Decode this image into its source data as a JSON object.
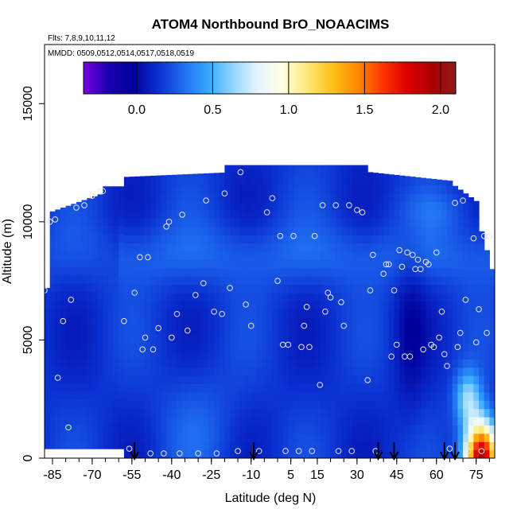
{
  "chart_data": {
    "type": "heatmap",
    "title": "ATOM4 Northbound BrO_NOAACIMS",
    "subtitle_flights": "Flts: 7,8,9,10,11,12",
    "subtitle_dates": "MMDD: 0509,0512,0514,0517,0518,0519",
    "xlabel": "Latitude (deg N)",
    "ylabel": "Altitude (m)",
    "xlim": [
      -88,
      82
    ],
    "ylim": [
      0,
      17500
    ],
    "x_ticks": [
      -85,
      -70,
      -55,
      -40,
      -25,
      -10,
      5,
      15,
      30,
      45,
      60,
      75
    ],
    "y_ticks": [
      0,
      5000,
      10000,
      15000
    ],
    "colorbar": {
      "range": [
        -0.35,
        2.1
      ],
      "ticks": [
        0.0,
        0.5,
        1.0,
        1.5,
        2.0
      ],
      "tick_labels": [
        "0.0",
        "0.5",
        "1.0",
        "1.5",
        "2.0"
      ],
      "colors": [
        "#7a00e0",
        "#1a00b0",
        "#00009a",
        "#0a2fd0",
        "#1e6cf0",
        "#35a8ff",
        "#8fd4ff",
        "#e6f6ff",
        "#ffffe6",
        "#ffe97a",
        "#ffc21a",
        "#ff8a00",
        "#ff3a00",
        "#e00000",
        "#b00000",
        "#8b1a1a"
      ]
    },
    "profile_arrows_lat": [
      -54,
      -9,
      38,
      44,
      63,
      67
    ],
    "observations": [
      {
        "lat": -88,
        "alt": 7100
      },
      {
        "lat": -86,
        "alt": 10000
      },
      {
        "lat": -84,
        "alt": 10100
      },
      {
        "lat": -83,
        "alt": 3400
      },
      {
        "lat": -81,
        "alt": 5800
      },
      {
        "lat": -79,
        "alt": 1300
      },
      {
        "lat": -78,
        "alt": 6700
      },
      {
        "lat": -76,
        "alt": 10600
      },
      {
        "lat": -73,
        "alt": 10700
      },
      {
        "lat": -70,
        "alt": 11100
      },
      {
        "lat": -67,
        "alt": 11300
      },
      {
        "lat": -66,
        "alt": 11300
      },
      {
        "lat": -58,
        "alt": 5800
      },
      {
        "lat": -56,
        "alt": 400
      },
      {
        "lat": -54,
        "alt": 7000
      },
      {
        "lat": -52,
        "alt": 8500
      },
      {
        "lat": -51,
        "alt": 4600
      },
      {
        "lat": -50,
        "alt": 5100
      },
      {
        "lat": -49,
        "alt": 8500
      },
      {
        "lat": -48,
        "alt": 200
      },
      {
        "lat": -47,
        "alt": 4600
      },
      {
        "lat": -45,
        "alt": 5500
      },
      {
        "lat": -43,
        "alt": 200
      },
      {
        "lat": -42,
        "alt": 9800
      },
      {
        "lat": -41,
        "alt": 10000
      },
      {
        "lat": -40,
        "alt": 5100
      },
      {
        "lat": -38,
        "alt": 6100
      },
      {
        "lat": -37,
        "alt": 200
      },
      {
        "lat": -36,
        "alt": 10300
      },
      {
        "lat": -34,
        "alt": 5400
      },
      {
        "lat": -31,
        "alt": 6900
      },
      {
        "lat": -30,
        "alt": 200
      },
      {
        "lat": -28,
        "alt": 7400
      },
      {
        "lat": -27,
        "alt": 10900
      },
      {
        "lat": -24,
        "alt": 6200
      },
      {
        "lat": -23,
        "alt": 200
      },
      {
        "lat": -21,
        "alt": 6100
      },
      {
        "lat": -20,
        "alt": 11200
      },
      {
        "lat": -18,
        "alt": 7200
      },
      {
        "lat": -15,
        "alt": 300
      },
      {
        "lat": -14,
        "alt": 12100
      },
      {
        "lat": -12,
        "alt": 6500
      },
      {
        "lat": -10,
        "alt": 5600
      },
      {
        "lat": -7,
        "alt": 300
      },
      {
        "lat": -4,
        "alt": 10400
      },
      {
        "lat": -2,
        "alt": 11000
      },
      {
        "lat": 0,
        "alt": 7500
      },
      {
        "lat": 1,
        "alt": 9400
      },
      {
        "lat": 2,
        "alt": 4800
      },
      {
        "lat": 3,
        "alt": 300
      },
      {
        "lat": 4,
        "alt": 4800
      },
      {
        "lat": 6,
        "alt": 9400
      },
      {
        "lat": 8,
        "alt": 300
      },
      {
        "lat": 9,
        "alt": 4700
      },
      {
        "lat": 10,
        "alt": 5600
      },
      {
        "lat": 11,
        "alt": 6400
      },
      {
        "lat": 12,
        "alt": 4700
      },
      {
        "lat": 13,
        "alt": 300
      },
      {
        "lat": 14,
        "alt": 9400
      },
      {
        "lat": 16,
        "alt": 3100
      },
      {
        "lat": 17,
        "alt": 10700
      },
      {
        "lat": 18,
        "alt": 6200
      },
      {
        "lat": 19,
        "alt": 7000
      },
      {
        "lat": 20,
        "alt": 6800
      },
      {
        "lat": 22,
        "alt": 10700
      },
      {
        "lat": 23,
        "alt": 300
      },
      {
        "lat": 24,
        "alt": 6600
      },
      {
        "lat": 25,
        "alt": 5600
      },
      {
        "lat": 27,
        "alt": 10700
      },
      {
        "lat": 28,
        "alt": 300
      },
      {
        "lat": 30,
        "alt": 10500
      },
      {
        "lat": 32,
        "alt": 10400
      },
      {
        "lat": 34,
        "alt": 3300
      },
      {
        "lat": 35,
        "alt": 7100
      },
      {
        "lat": 36,
        "alt": 8600
      },
      {
        "lat": 37,
        "alt": 300
      },
      {
        "lat": 40,
        "alt": 7800
      },
      {
        "lat": 41,
        "alt": 8200
      },
      {
        "lat": 42,
        "alt": 8200
      },
      {
        "lat": 43,
        "alt": 4300
      },
      {
        "lat": 44,
        "alt": 7100
      },
      {
        "lat": 45,
        "alt": 4800
      },
      {
        "lat": 46,
        "alt": 8800
      },
      {
        "lat": 47,
        "alt": 8100
      },
      {
        "lat": 48,
        "alt": 4300
      },
      {
        "lat": 49,
        "alt": 8700
      },
      {
        "lat": 50,
        "alt": 4300
      },
      {
        "lat": 51,
        "alt": 8600
      },
      {
        "lat": 52,
        "alt": 8000
      },
      {
        "lat": 53,
        "alt": 8400
      },
      {
        "lat": 54,
        "alt": 8000
      },
      {
        "lat": 55,
        "alt": 4600
      },
      {
        "lat": 56,
        "alt": 8300
      },
      {
        "lat": 57,
        "alt": 8200
      },
      {
        "lat": 58,
        "alt": 4800
      },
      {
        "lat": 59,
        "alt": 4700
      },
      {
        "lat": 60,
        "alt": 8700
      },
      {
        "lat": 61,
        "alt": 5100
      },
      {
        "lat": 62,
        "alt": 6200
      },
      {
        "lat": 63,
        "alt": 4400
      },
      {
        "lat": 64,
        "alt": 3900
      },
      {
        "lat": 65,
        "alt": 400
      },
      {
        "lat": 67,
        "alt": 10800
      },
      {
        "lat": 68,
        "alt": 4700
      },
      {
        "lat": 69,
        "alt": 5300
      },
      {
        "lat": 70,
        "alt": 10900
      },
      {
        "lat": 71,
        "alt": 6700
      },
      {
        "lat": 72,
        "alt": 300
      },
      {
        "lat": 74,
        "alt": 9300
      },
      {
        "lat": 75,
        "alt": 4900
      },
      {
        "lat": 76,
        "alt": 6300
      },
      {
        "lat": 77,
        "alt": 300
      },
      {
        "lat": 78,
        "alt": 9400
      },
      {
        "lat": 79,
        "alt": 5300
      },
      {
        "lat": 80,
        "alt": 9400
      }
    ]
  }
}
